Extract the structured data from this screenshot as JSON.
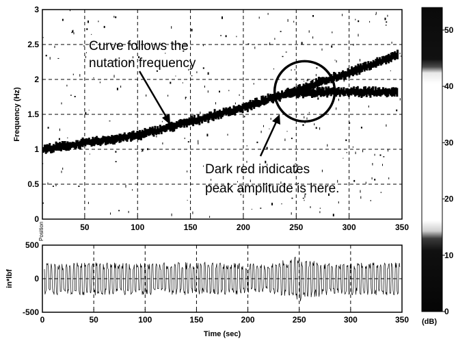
{
  "chart_data": [
    {
      "type": "heatmap",
      "title": "",
      "xlabel": "",
      "ylabel": "Frequency (Hz)",
      "xlim": [
        10,
        350
      ],
      "ylim": [
        0,
        3
      ],
      "x_ticks": [
        "50",
        "100",
        "150",
        "200",
        "250",
        "300",
        "350"
      ],
      "x_tick_values": [
        50,
        100,
        150,
        200,
        250,
        300,
        350
      ],
      "y_ticks": [
        "0",
        "0.5",
        "1",
        "1.5",
        "2",
        "2.5",
        "3"
      ],
      "y_tick_values": [
        0,
        0.5,
        1,
        1.5,
        2,
        2.5,
        3
      ],
      "grid": true,
      "ridges": [
        {
          "x": [
            10,
            100,
            150,
            200,
            250,
            300,
            345
          ],
          "y": [
            1.0,
            1.2,
            1.4,
            1.6,
            1.85,
            2.1,
            2.35
          ]
        },
        {
          "x": [
            240,
            280,
            345
          ],
          "y": [
            1.8,
            1.82,
            1.82
          ]
        }
      ],
      "annotations": [
        {
          "lines": [
            "Curve follows the",
            "nutation frequency"
          ]
        },
        {
          "lines": [
            "Dark red indicates",
            "peak amplitude is here."
          ]
        }
      ],
      "circle_center": {
        "x": 258,
        "y": 1.83
      }
    },
    {
      "type": "line",
      "xlabel": "Time (sec)",
      "ylabel": "in*lbf",
      "small_label": "Position",
      "xlim": [
        0,
        350
      ],
      "ylim": [
        -500,
        500
      ],
      "x_ticks": [
        "0",
        "50",
        "100",
        "150",
        "200",
        "250",
        "300",
        "350"
      ],
      "x_tick_values": [
        0,
        50,
        100,
        150,
        200,
        250,
        300,
        350
      ],
      "y_ticks": [
        "500",
        "0",
        "-500"
      ],
      "y_tick_values": [
        500,
        0,
        -500
      ],
      "grid": true,
      "envelope": {
        "x": [
          0,
          50,
          100,
          150,
          200,
          220,
          250,
          280,
          300,
          350
        ],
        "amplitude": [
          240,
          250,
          240,
          250,
          230,
          220,
          340,
          230,
          240,
          250
        ]
      }
    },
    {
      "type": "heatmap",
      "role": "colorbar",
      "xlabel": "(dB)",
      "range": [
        0,
        54
      ],
      "ticks": [
        "0",
        "10",
        "20",
        "30",
        "40",
        "50"
      ],
      "tick_values": [
        0,
        10,
        20,
        30,
        40,
        50
      ]
    }
  ]
}
